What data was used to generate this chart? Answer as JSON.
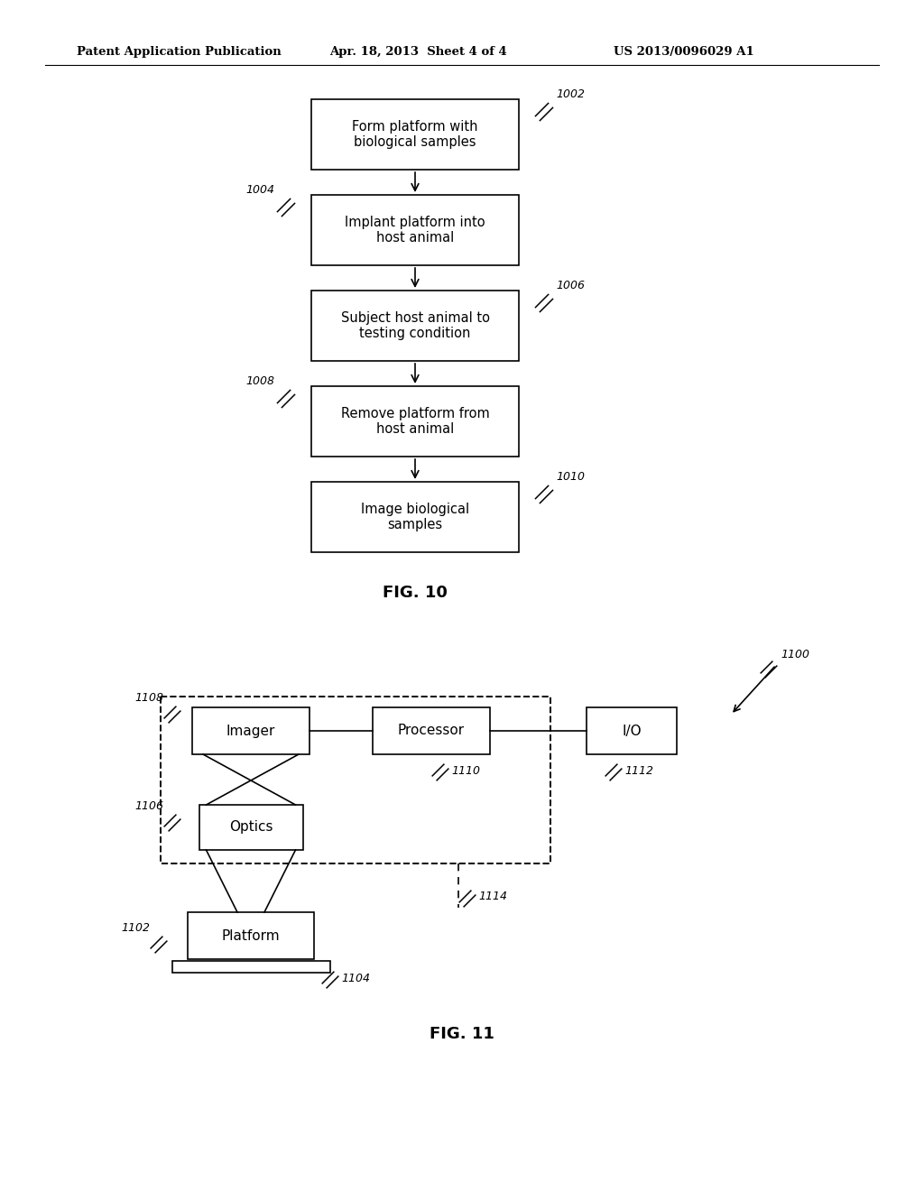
{
  "bg_color": "#ffffff",
  "header_text": "Patent Application Publication",
  "header_date": "Apr. 18, 2013  Sheet 4 of 4",
  "header_patent": "US 2013/0096029 A1",
  "fig10_label": "FIG. 10",
  "fig11_label": "FIG. 11",
  "flowchart_boxes": [
    {
      "label": "Form platform with\nbiological samples",
      "ref": "1002",
      "ref_side": "right"
    },
    {
      "label": "Implant platform into\nhost animal",
      "ref": "1004",
      "ref_side": "left"
    },
    {
      "label": "Subject host animal to\ntesting condition",
      "ref": "1006",
      "ref_side": "right"
    },
    {
      "label": "Remove platform from\nhost animal",
      "ref": "1008",
      "ref_side": "left"
    },
    {
      "label": "Image biological\nsamples",
      "ref": "1010",
      "ref_side": "right"
    }
  ]
}
